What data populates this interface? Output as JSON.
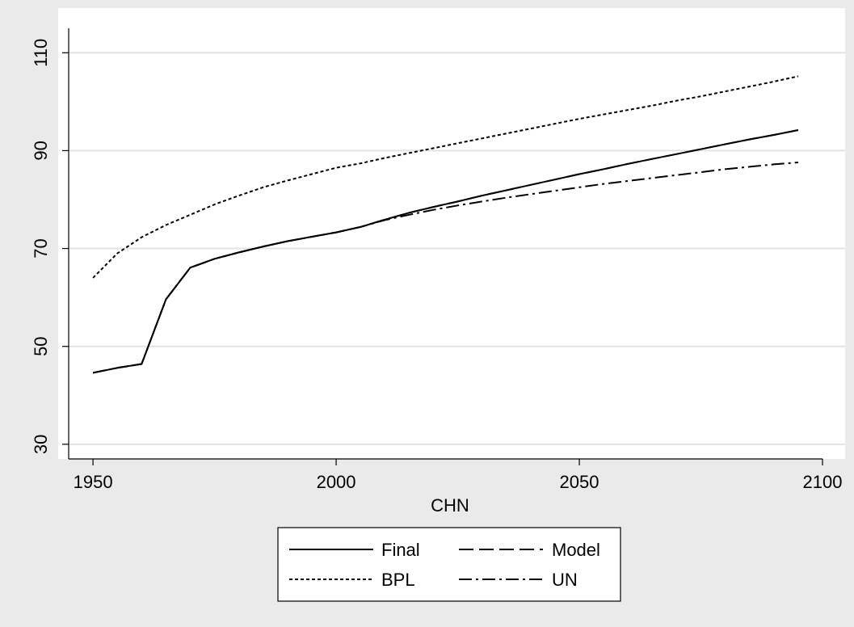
{
  "chart_data": {
    "type": "line",
    "title": "",
    "xlabel": "CHN",
    "ylabel": "",
    "xlim": [
      1945,
      2100
    ],
    "ylim": [
      27,
      115
    ],
    "x_ticks": [
      1950,
      2000,
      2050,
      2100
    ],
    "y_ticks": [
      30,
      50,
      70,
      90,
      110
    ],
    "x_tick_labels": [
      "1950",
      "2000",
      "2050",
      "2100"
    ],
    "y_tick_labels": [
      "30",
      "50",
      "70",
      "90",
      "110"
    ],
    "grid": "horizontal",
    "legend_position": "bottom",
    "colors": {
      "background": "#eaeaea",
      "plot_area": "#ffffff",
      "line": "#000000",
      "grid": "#e3e3e3"
    },
    "series": [
      {
        "name": "Final",
        "style": "solid",
        "x": [
          1950,
          1955,
          1960,
          1965,
          1970,
          1975,
          1980,
          1985,
          1990,
          1995,
          2000,
          2005,
          2010,
          2015,
          2020,
          2025,
          2030,
          2035,
          2040,
          2045,
          2050,
          2055,
          2060,
          2065,
          2070,
          2075,
          2080,
          2085,
          2090,
          2095
        ],
        "values": [
          44.6,
          45.6,
          46.4,
          59.6,
          66.1,
          67.9,
          69.2,
          70.4,
          71.5,
          72.4,
          73.3,
          74.4,
          75.9,
          77.3,
          78.5,
          79.6,
          80.8,
          81.9,
          83.0,
          84.1,
          85.2,
          86.2,
          87.3,
          88.3,
          89.3,
          90.3,
          91.3,
          92.3,
          93.2,
          94.2
        ]
      },
      {
        "name": "Model",
        "style": "dashed",
        "x": [
          1950,
          1955,
          1960,
          1965,
          1970,
          1975,
          1980,
          1985,
          1990,
          1995,
          2000,
          2005,
          2010,
          2015,
          2020,
          2025,
          2030,
          2035,
          2040,
          2045,
          2050,
          2055,
          2060,
          2065,
          2070,
          2075,
          2080,
          2085,
          2090,
          2095
        ],
        "values": [
          44.6,
          45.6,
          46.4,
          59.6,
          66.1,
          67.9,
          69.2,
          70.4,
          71.5,
          72.4,
          73.3,
          74.4,
          75.9,
          77.3,
          78.5,
          79.6,
          80.8,
          81.9,
          83.0,
          84.1,
          85.2,
          86.2,
          87.3,
          88.3,
          89.3,
          90.3,
          91.3,
          92.3,
          93.2,
          94.2
        ]
      },
      {
        "name": "BPL",
        "style": "dotted",
        "x": [
          1950,
          1955,
          1960,
          1965,
          1970,
          1975,
          1980,
          1985,
          1990,
          1995,
          2000,
          2005,
          2010,
          2015,
          2020,
          2025,
          2030,
          2035,
          2040,
          2045,
          2050,
          2055,
          2060,
          2065,
          2070,
          2075,
          2080,
          2085,
          2090,
          2095
        ],
        "values": [
          64.0,
          69.0,
          72.3,
          74.8,
          76.9,
          79.0,
          80.8,
          82.5,
          83.9,
          85.2,
          86.5,
          87.4,
          88.5,
          89.5,
          90.5,
          91.5,
          92.5,
          93.5,
          94.5,
          95.5,
          96.5,
          97.4,
          98.3,
          99.2,
          100.2,
          101.1,
          102.1,
          103.1,
          104.1,
          105.2
        ]
      },
      {
        "name": "UN",
        "style": "dashdot",
        "x": [
          1950,
          1955,
          1960,
          1965,
          1970,
          1975,
          1980,
          1985,
          1990,
          1995,
          2000,
          2005,
          2010,
          2015,
          2020,
          2025,
          2030,
          2035,
          2040,
          2045,
          2050,
          2055,
          2060,
          2065,
          2070,
          2075,
          2080,
          2085,
          2090,
          2095
        ],
        "values": [
          44.6,
          45.6,
          46.4,
          59.6,
          66.1,
          67.9,
          69.2,
          70.4,
          71.5,
          72.4,
          73.3,
          74.4,
          75.8,
          76.9,
          77.9,
          78.8,
          79.6,
          80.4,
          81.1,
          81.8,
          82.5,
          83.2,
          83.8,
          84.4,
          85.0,
          85.6,
          86.2,
          86.7,
          87.2,
          87.6
        ]
      }
    ]
  }
}
